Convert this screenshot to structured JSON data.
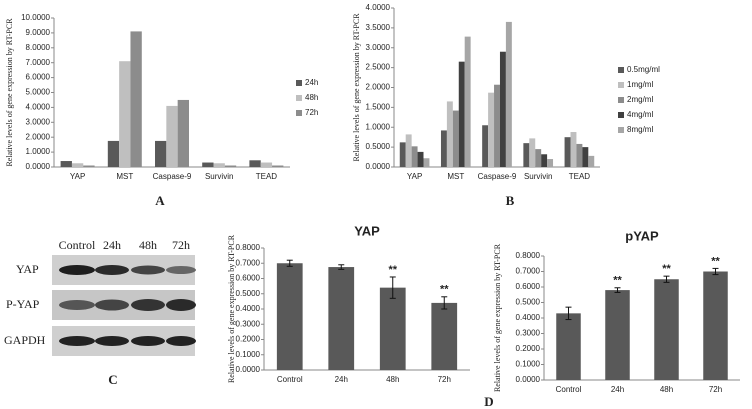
{
  "chart_data": [
    {
      "type": "bar",
      "y_label": "Relative levels of gene expression by RT-PCR",
      "categories": [
        "YAP",
        "MST",
        "Caspase-9",
        "Survivin",
        "TEAD"
      ],
      "series": [
        {
          "name": "24h",
          "color": "#595959",
          "values": [
            0.4,
            1.75,
            1.75,
            0.3,
            0.45
          ]
        },
        {
          "name": "48h",
          "color": "#bfbfbf",
          "values": [
            0.25,
            7.1,
            4.1,
            0.25,
            0.3
          ]
        },
        {
          "name": "72h",
          "color": "#8c8c8c",
          "values": [
            0.1,
            9.1,
            4.5,
            0.1,
            0.1
          ]
        }
      ],
      "ylim": [
        0,
        10
      ],
      "yticks": [
        {
          "value": 0,
          "label": "0.0000"
        },
        {
          "value": 1,
          "label": "1.0000"
        },
        {
          "value": 2,
          "label": "2.0000"
        },
        {
          "value": 3,
          "label": "3.0000"
        },
        {
          "value": 4,
          "label": "4.0000"
        },
        {
          "value": 5,
          "label": "5.0000"
        },
        {
          "value": 6,
          "label": "6.0000"
        },
        {
          "value": 7,
          "label": "7.0000"
        },
        {
          "value": 8,
          "label": "8.0000"
        },
        {
          "value": 9,
          "label": "9.0000"
        },
        {
          "value": 10,
          "label": "10.0000"
        }
      ],
      "legend": "right"
    },
    {
      "type": "bar",
      "y_label": "Relative levels of gene expression by RT-PCR",
      "categories": [
        "YAP",
        "MST",
        "Caspase-9",
        "Survivin",
        "TEAD"
      ],
      "series": [
        {
          "name": "0.5mg/ml",
          "color": "#595959",
          "values": [
            0.62,
            0.92,
            1.05,
            0.6,
            0.75
          ]
        },
        {
          "name": "1mg/ml",
          "color": "#bfbfbf",
          "values": [
            0.82,
            1.65,
            1.87,
            0.72,
            0.88
          ]
        },
        {
          "name": "2mg/ml",
          "color": "#8c8c8c",
          "values": [
            0.52,
            1.42,
            2.07,
            0.45,
            0.58
          ]
        },
        {
          "name": "4mg/ml",
          "color": "#404040",
          "values": [
            0.38,
            2.65,
            2.9,
            0.32,
            0.5
          ]
        },
        {
          "name": "8mg/ml",
          "color": "#a6a6a6",
          "values": [
            0.22,
            3.28,
            3.65,
            0.2,
            0.28
          ]
        }
      ],
      "ylim": [
        0,
        4
      ],
      "yticks": [
        {
          "value": 0,
          "label": "0.0000"
        },
        {
          "value": 0.5,
          "label": "0.5000"
        },
        {
          "value": 1,
          "label": "1.0000"
        },
        {
          "value": 1.5,
          "label": "1.5000"
        },
        {
          "value": 2,
          "label": "2.0000"
        },
        {
          "value": 2.5,
          "label": "2.5000"
        },
        {
          "value": 3,
          "label": "3.0000"
        },
        {
          "value": 3.5,
          "label": "3.5000"
        },
        {
          "value": 4,
          "label": "4.0000"
        }
      ],
      "legend": "right"
    },
    {
      "type": "bar",
      "title": "YAP",
      "y_label": "Relative levels of gene expression by RT-PCR",
      "categories": [
        "Control",
        "24h",
        "48h",
        "72h"
      ],
      "values": [
        0.7,
        0.675,
        0.54,
        0.44
      ],
      "errors": [
        0.02,
        0.015,
        0.07,
        0.04
      ],
      "value_annotations": [
        null,
        null,
        "**",
        "**"
      ],
      "color": "#595959",
      "ylim": [
        0,
        0.8
      ],
      "yticks": [
        {
          "value": 0,
          "label": "0.0000"
        },
        {
          "value": 0.1,
          "label": "0.1000"
        },
        {
          "value": 0.2,
          "label": "0.2000"
        },
        {
          "value": 0.3,
          "label": "0.3000"
        },
        {
          "value": 0.4,
          "label": "0.4000"
        },
        {
          "value": 0.5,
          "label": "0.5000"
        },
        {
          "value": 0.6,
          "label": "0.6000"
        },
        {
          "value": 0.7,
          "label": "0.7000"
        },
        {
          "value": 0.8,
          "label": "0.8000"
        }
      ]
    },
    {
      "type": "bar",
      "title": "pYAP",
      "y_label": "Relative levels of gene expression by RT-PCR",
      "categories": [
        "Control",
        "24h",
        "48h",
        "72h"
      ],
      "values": [
        0.43,
        0.58,
        0.65,
        0.7
      ],
      "errors": [
        0.04,
        0.015,
        0.02,
        0.02
      ],
      "value_annotations": [
        null,
        "**",
        "**",
        "**"
      ],
      "color": "#595959",
      "ylim": [
        0,
        0.8
      ],
      "yticks": [
        {
          "value": 0,
          "label": "0.0000"
        },
        {
          "value": 0.1,
          "label": "0.1000"
        },
        {
          "value": 0.2,
          "label": "0.2000"
        },
        {
          "value": 0.3,
          "label": "0.3000"
        },
        {
          "value": 0.4,
          "label": "0.4000"
        },
        {
          "value": 0.5,
          "label": "0.5000"
        },
        {
          "value": 0.6,
          "label": "0.6000"
        },
        {
          "value": 0.7,
          "label": "0.7000"
        },
        {
          "value": 0.8,
          "label": "0.8000"
        }
      ]
    }
  ],
  "blot": {
    "columns": [
      "Control",
      "24h",
      "48h",
      "72h"
    ],
    "rows": [
      "YAP",
      "P-YAP",
      "GAPDH"
    ]
  },
  "panel_labels": [
    "A",
    "B",
    "C",
    "D"
  ]
}
